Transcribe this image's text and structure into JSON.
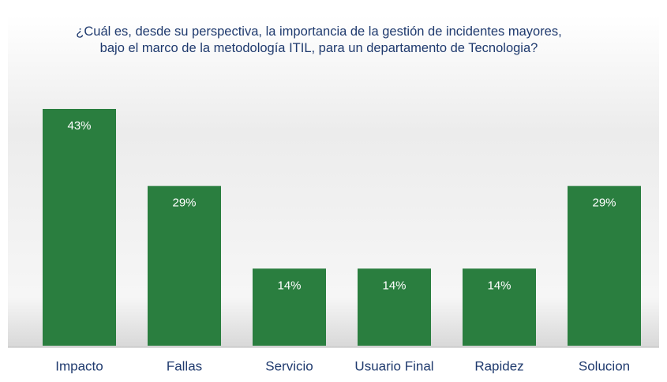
{
  "chart_data": {
    "type": "bar",
    "title": "¿Cuál es, desde su perspectiva, la importancia de la gestión de incidentes mayores, bajo el marco de la metodología ITIL, para un departamento de Tecnologia?",
    "categories": [
      "Impacto",
      "Fallas",
      "Servicio",
      "Usuario Final",
      "Rapidez",
      "Solucion"
    ],
    "values": [
      43,
      29,
      14,
      14,
      14,
      29
    ],
    "value_labels": [
      "43%",
      "29%",
      "14%",
      "14%",
      "14%",
      "29%"
    ],
    "color": "#2a7e3f"
  }
}
